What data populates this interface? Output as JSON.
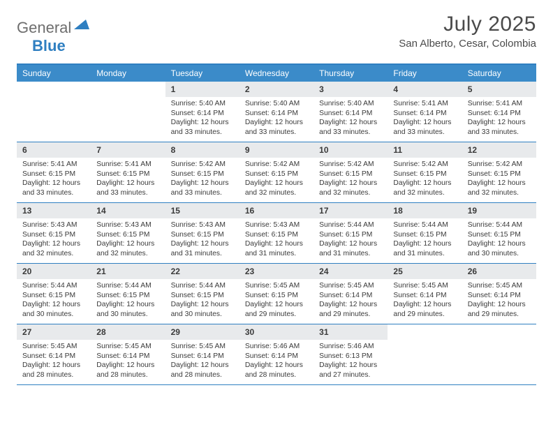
{
  "brand": {
    "part1": "General",
    "part2": "Blue"
  },
  "title": "July 2025",
  "location": "San Alberto, Cesar, Colombia",
  "colors": {
    "header_bg": "#3b8bc9",
    "border": "#2f7fc1",
    "daynum_bg": "#e8eaec",
    "text": "#3a3a3a",
    "logo_gray": "#6e6e6e",
    "logo_blue": "#2f7fc1"
  },
  "day_headers": [
    "Sunday",
    "Monday",
    "Tuesday",
    "Wednesday",
    "Thursday",
    "Friday",
    "Saturday"
  ],
  "weeks": [
    [
      null,
      null,
      {
        "n": "1",
        "sr": "5:40 AM",
        "ss": "6:14 PM",
        "dl": "12 hours and 33 minutes."
      },
      {
        "n": "2",
        "sr": "5:40 AM",
        "ss": "6:14 PM",
        "dl": "12 hours and 33 minutes."
      },
      {
        "n": "3",
        "sr": "5:40 AM",
        "ss": "6:14 PM",
        "dl": "12 hours and 33 minutes."
      },
      {
        "n": "4",
        "sr": "5:41 AM",
        "ss": "6:14 PM",
        "dl": "12 hours and 33 minutes."
      },
      {
        "n": "5",
        "sr": "5:41 AM",
        "ss": "6:14 PM",
        "dl": "12 hours and 33 minutes."
      }
    ],
    [
      {
        "n": "6",
        "sr": "5:41 AM",
        "ss": "6:15 PM",
        "dl": "12 hours and 33 minutes."
      },
      {
        "n": "7",
        "sr": "5:41 AM",
        "ss": "6:15 PM",
        "dl": "12 hours and 33 minutes."
      },
      {
        "n": "8",
        "sr": "5:42 AM",
        "ss": "6:15 PM",
        "dl": "12 hours and 33 minutes."
      },
      {
        "n": "9",
        "sr": "5:42 AM",
        "ss": "6:15 PM",
        "dl": "12 hours and 32 minutes."
      },
      {
        "n": "10",
        "sr": "5:42 AM",
        "ss": "6:15 PM",
        "dl": "12 hours and 32 minutes."
      },
      {
        "n": "11",
        "sr": "5:42 AM",
        "ss": "6:15 PM",
        "dl": "12 hours and 32 minutes."
      },
      {
        "n": "12",
        "sr": "5:42 AM",
        "ss": "6:15 PM",
        "dl": "12 hours and 32 minutes."
      }
    ],
    [
      {
        "n": "13",
        "sr": "5:43 AM",
        "ss": "6:15 PM",
        "dl": "12 hours and 32 minutes."
      },
      {
        "n": "14",
        "sr": "5:43 AM",
        "ss": "6:15 PM",
        "dl": "12 hours and 32 minutes."
      },
      {
        "n": "15",
        "sr": "5:43 AM",
        "ss": "6:15 PM",
        "dl": "12 hours and 31 minutes."
      },
      {
        "n": "16",
        "sr": "5:43 AM",
        "ss": "6:15 PM",
        "dl": "12 hours and 31 minutes."
      },
      {
        "n": "17",
        "sr": "5:44 AM",
        "ss": "6:15 PM",
        "dl": "12 hours and 31 minutes."
      },
      {
        "n": "18",
        "sr": "5:44 AM",
        "ss": "6:15 PM",
        "dl": "12 hours and 31 minutes."
      },
      {
        "n": "19",
        "sr": "5:44 AM",
        "ss": "6:15 PM",
        "dl": "12 hours and 30 minutes."
      }
    ],
    [
      {
        "n": "20",
        "sr": "5:44 AM",
        "ss": "6:15 PM",
        "dl": "12 hours and 30 minutes."
      },
      {
        "n": "21",
        "sr": "5:44 AM",
        "ss": "6:15 PM",
        "dl": "12 hours and 30 minutes."
      },
      {
        "n": "22",
        "sr": "5:44 AM",
        "ss": "6:15 PM",
        "dl": "12 hours and 30 minutes."
      },
      {
        "n": "23",
        "sr": "5:45 AM",
        "ss": "6:15 PM",
        "dl": "12 hours and 29 minutes."
      },
      {
        "n": "24",
        "sr": "5:45 AM",
        "ss": "6:14 PM",
        "dl": "12 hours and 29 minutes."
      },
      {
        "n": "25",
        "sr": "5:45 AM",
        "ss": "6:14 PM",
        "dl": "12 hours and 29 minutes."
      },
      {
        "n": "26",
        "sr": "5:45 AM",
        "ss": "6:14 PM",
        "dl": "12 hours and 29 minutes."
      }
    ],
    [
      {
        "n": "27",
        "sr": "5:45 AM",
        "ss": "6:14 PM",
        "dl": "12 hours and 28 minutes."
      },
      {
        "n": "28",
        "sr": "5:45 AM",
        "ss": "6:14 PM",
        "dl": "12 hours and 28 minutes."
      },
      {
        "n": "29",
        "sr": "5:45 AM",
        "ss": "6:14 PM",
        "dl": "12 hours and 28 minutes."
      },
      {
        "n": "30",
        "sr": "5:46 AM",
        "ss": "6:14 PM",
        "dl": "12 hours and 28 minutes."
      },
      {
        "n": "31",
        "sr": "5:46 AM",
        "ss": "6:13 PM",
        "dl": "12 hours and 27 minutes."
      },
      null,
      null
    ]
  ],
  "labels": {
    "sunrise": "Sunrise:",
    "sunset": "Sunset:",
    "daylight": "Daylight:"
  }
}
